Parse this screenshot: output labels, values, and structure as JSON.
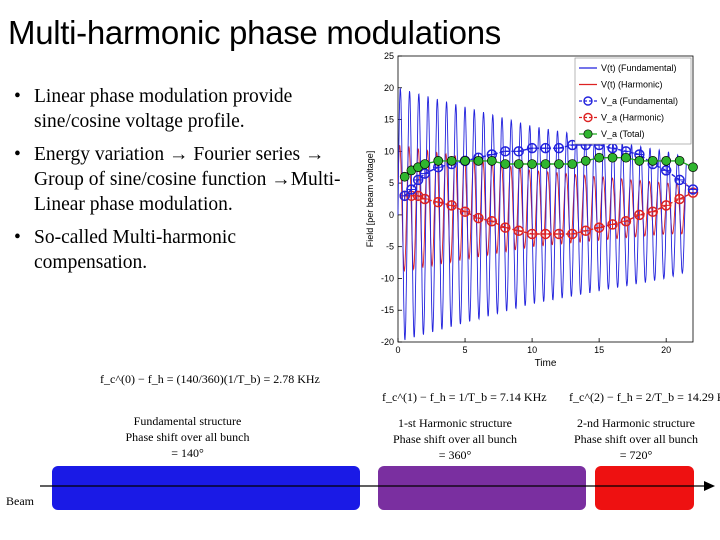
{
  "slide": {
    "title": "Multi-harmonic phase modulations",
    "bullets": [
      {
        "marker": "•",
        "text": "Linear phase modulation provide sine/cosine voltage profile."
      },
      {
        "marker": "•",
        "text": "Energy variation → Fourier series → Group of sine/cosine function →Multi-Linear phase modulation."
      },
      {
        "marker": "•",
        "text": "So-called Multi-harmonic compensation."
      }
    ]
  },
  "formulas": {
    "fundamental": {
      "text": "f_c^(0) − f_h = (140/360)(1/T_b) = 2.78 KHz"
    },
    "harmonic1": {
      "text": "f_c^(1) − f_h = 1/T_b = 7.14 KHz"
    },
    "harmonic2": {
      "text": "f_c^(2) − f_h = 2/T_b = 14.29 KHz"
    }
  },
  "captions": {
    "fundamental": [
      "Fundamental structure",
      "Phase shift over all bunch",
      "= 140°"
    ],
    "harmonic1": [
      "1-st Harmonic structure",
      "Phase shift over all bunch",
      "= 360°"
    ],
    "harmonic2": [
      "2-nd Harmonic structure",
      "Phase shift over all bunch",
      "= 720°"
    ]
  },
  "beam": {
    "label": "Beam",
    "segments": [
      {
        "name": "fundamental",
        "color": "#1a1ae6"
      },
      {
        "name": "first-harmonic",
        "color": "#7a2fa0"
      },
      {
        "name": "second-harmonic",
        "color": "#ee1111"
      }
    ]
  },
  "chart_data": {
    "type": "line",
    "xlabel": "Time",
    "ylabel": "Field [per beam voltage]",
    "xlim": [
      0,
      22
    ],
    "ylim": [
      -20,
      25
    ],
    "xticks": [
      0,
      5,
      10,
      15,
      20
    ],
    "yticks": [
      -20,
      -15,
      -10,
      -5,
      0,
      5,
      10,
      15,
      20,
      25
    ],
    "legend_position": "top-right",
    "legend": [
      {
        "label": "V(t) (Fundamental)",
        "color": "#2222dd",
        "style": "line"
      },
      {
        "label": "V(t) (Harmonic)",
        "color": "#dd2222",
        "style": "line"
      },
      {
        "label": "V_a (Fundamental)",
        "color": "#2222dd",
        "style": "dashed-circle"
      },
      {
        "label": "V_a (Harmonic)",
        "color": "#dd2222",
        "style": "dashed-circle"
      },
      {
        "label": "V_a (Total)",
        "color": "#22aa22",
        "style": "filled-circle"
      }
    ],
    "series": [
      {
        "name": "V(t) (Fundamental)",
        "color": "#2222dd",
        "description_points": {
          "x": [
            0,
            5,
            10,
            15,
            20,
            21.5
          ],
          "amplitude": [
            20,
            17,
            14,
            12,
            10,
            9
          ]
        }
      },
      {
        "name": "V(t) (Harmonic)",
        "color": "#dd2222",
        "description_points": {
          "x": [
            0,
            5,
            10,
            15,
            20,
            21.5
          ],
          "amplitude": [
            10,
            8,
            6,
            5,
            4,
            4
          ]
        }
      },
      {
        "name": "V_a (Fundamental)",
        "color": "#2222dd",
        "x": [
          0.5,
          1,
          1.5,
          2,
          3,
          4,
          5,
          6,
          7,
          8,
          9,
          10,
          11,
          12,
          13,
          14,
          15,
          16,
          17,
          18,
          19,
          20,
          21,
          22
        ],
        "y": [
          3,
          4,
          5.5,
          6.5,
          7.5,
          8,
          8.5,
          9,
          9.5,
          10,
          10,
          10.5,
          10.5,
          10.5,
          11,
          11,
          11,
          10.5,
          10,
          9.5,
          8,
          7,
          5.5,
          4
        ]
      },
      {
        "name": "V_a (Harmonic)",
        "color": "#dd2222",
        "x": [
          0.5,
          1,
          1.5,
          2,
          3,
          4,
          5,
          6,
          7,
          8,
          9,
          10,
          11,
          12,
          13,
          14,
          15,
          16,
          17,
          18,
          19,
          20,
          21,
          22
        ],
        "y": [
          3,
          3,
          3,
          2.5,
          2,
          1.5,
          0.5,
          -0.5,
          -1,
          -2,
          -2.5,
          -3,
          -3,
          -3,
          -3,
          -2.5,
          -2,
          -1.5,
          -1,
          0,
          0.5,
          1.5,
          2.5,
          3.5
        ]
      },
      {
        "name": "V_a (Total)",
        "color": "#22aa22",
        "x": [
          0.5,
          1,
          1.5,
          2,
          3,
          4,
          5,
          6,
          7,
          8,
          9,
          10,
          11,
          12,
          13,
          14,
          15,
          16,
          17,
          18,
          19,
          20,
          21,
          22
        ],
        "y": [
          6,
          7,
          7.5,
          8,
          8.5,
          8.5,
          8.5,
          8.5,
          8.5,
          8,
          8,
          8,
          8,
          8,
          8,
          8.5,
          9,
          9,
          9,
          8.5,
          8.5,
          8.5,
          8.5,
          7.5
        ]
      }
    ]
  }
}
